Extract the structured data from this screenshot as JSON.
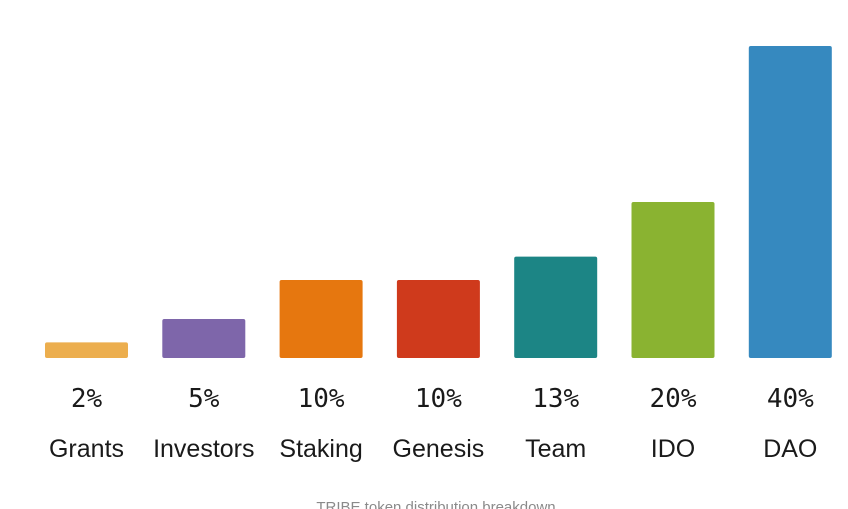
{
  "chart_data": {
    "type": "bar",
    "categories": [
      "Grants",
      "Investors",
      "Staking",
      "Genesis",
      "Team",
      "IDO",
      "DAO"
    ],
    "values": [
      2,
      5,
      10,
      10,
      13,
      20,
      40
    ],
    "value_labels": [
      "2%",
      "5%",
      "10%",
      "10%",
      "13%",
      "20%",
      "40%"
    ],
    "colors": [
      "#ECAE4E",
      "#7E66AA",
      "#E6770F",
      "#CF3A1C",
      "#1C8585",
      "#8AB331",
      "#3689BF"
    ],
    "ylim": [
      0,
      40
    ],
    "grid": false,
    "caption": "TRIBE token distribution breakdown"
  }
}
